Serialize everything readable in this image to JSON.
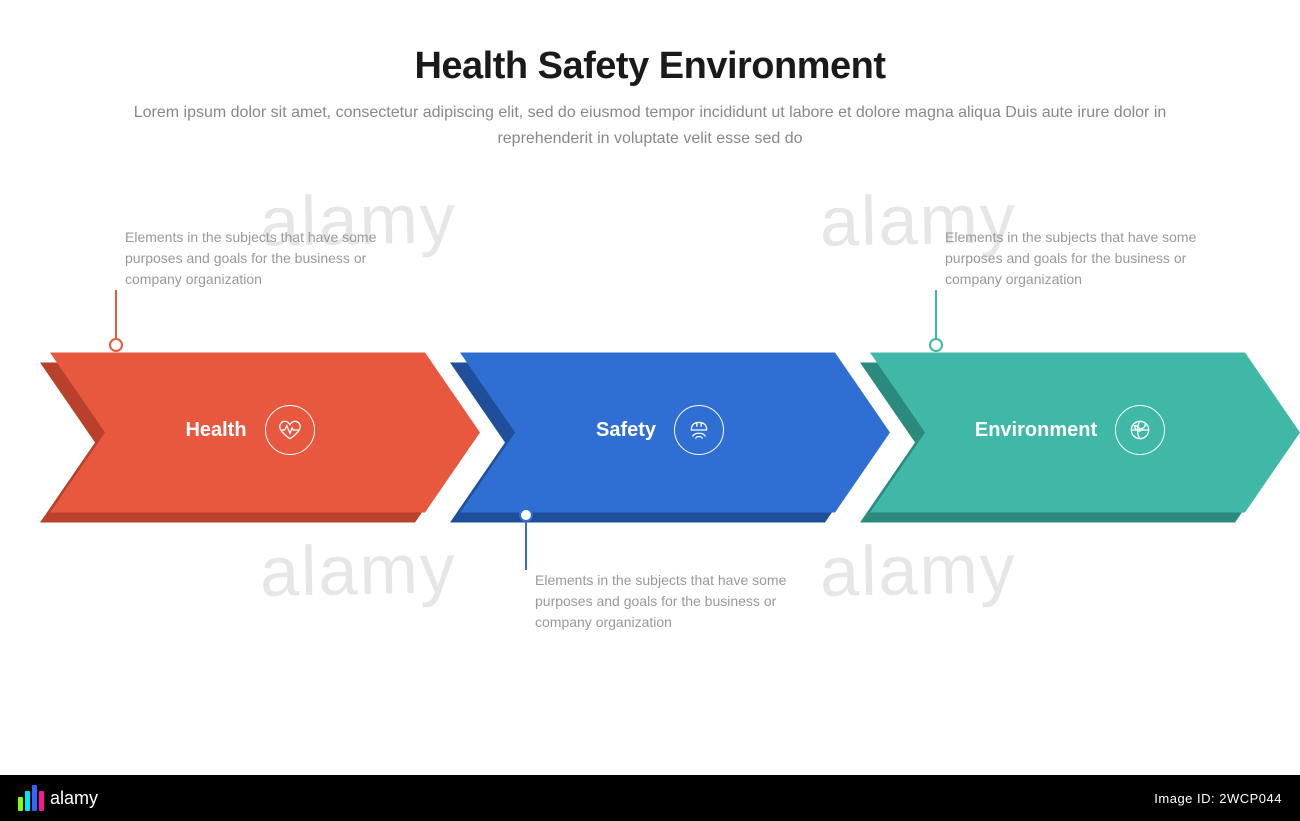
{
  "header": {
    "title": "Health Safety Environment",
    "subtitle": "Lorem ipsum dolor sit amet, consectetur adipiscing elit, sed do eiusmod tempor incididunt ut labore et dolore magna aliqua Duis aute irure dolor in reprehenderit in voluptate velit esse sed do"
  },
  "diagram": {
    "type": "arrow-chevron-flow",
    "arrow_height": 160,
    "arrow_width": 430,
    "notch_depth": 55,
    "point_depth": 55,
    "items": [
      {
        "label": "Health",
        "fill_color": "#e8583f",
        "shadow_color": "#b9402b",
        "icon": "heart-pulse",
        "callout_position": "top",
        "callout_text": "Elements in the subjects that have some purposes and goals for the business or company organization"
      },
      {
        "label": "Safety",
        "fill_color": "#2f6fd4",
        "shadow_color": "#1f4e9a",
        "icon": "hardhat-hand",
        "callout_position": "bottom",
        "callout_text": "Elements in the subjects that have some purposes and goals for the business or company organization"
      },
      {
        "label": "Environment",
        "fill_color": "#3fb8a8",
        "shadow_color": "#2a8a7d",
        "icon": "globe-leaf",
        "callout_position": "top",
        "callout_text": "Elements in the subjects that have some purposes and goals for the business or company organization"
      }
    ]
  },
  "watermark": {
    "text": "alamy",
    "logo_text": "alamy",
    "image_id": "Image ID: 2WCP044",
    "logo_colors": [
      "#7fff00",
      "#00e5ff",
      "#3366ff",
      "#ff1493"
    ]
  },
  "styling": {
    "background_color": "#ffffff",
    "title_color": "#1a1a1a",
    "title_fontsize": 38,
    "subtitle_color": "#888888",
    "subtitle_fontsize": 16,
    "callout_text_color": "#999999",
    "callout_fontsize": 14,
    "arrow_label_color": "#ffffff",
    "arrow_label_fontsize": 20
  }
}
